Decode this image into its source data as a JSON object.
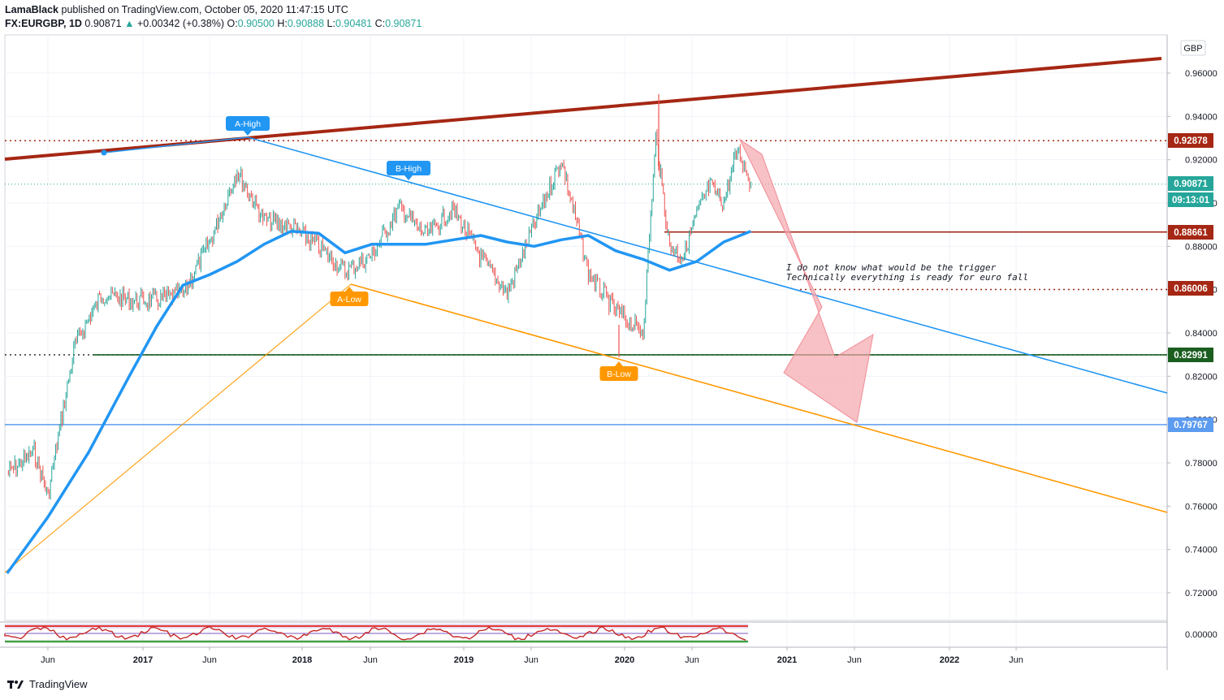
{
  "header": {
    "author": "LamaBlack",
    "published_text": "published on TradingView.com, October 05, 2020 11:47:15 UTC",
    "symbol": "FX:EURGBP, 1D",
    "last": "0.90871",
    "change": "+0.00342 (+0.38%)",
    "open_label": "O:",
    "open": "0.90500",
    "high_label": "H:",
    "high": "0.90888",
    "low_label": "L:",
    "low": "0.90481",
    "close_label": "C:",
    "close": "0.90871"
  },
  "footer": {
    "brand": "TradingView"
  },
  "colors": {
    "up": "#26a69a",
    "down": "#ef5350",
    "ma": "#2196f3",
    "trend_red": "#a52714",
    "blue_line": "#2196f3",
    "orange": "#ff9800",
    "green_line": "#1b5e20",
    "arrow_fill": "#f4a7ad"
  },
  "chart_data": {
    "type": "line",
    "title": "",
    "currency": "GBP",
    "ylim": [
      0.706,
      0.978
    ],
    "y_ticks": [
      "0.96000",
      "0.94000",
      "0.92000",
      "0.90000",
      "0.88000",
      "0.86000",
      "0.84000",
      "0.82000",
      "0.80000",
      "0.78000",
      "0.76000",
      "0.74000",
      "0.72000"
    ],
    "x_ticks": [
      "Jun",
      "2017",
      "Jun",
      "2018",
      "Jun",
      "2019",
      "Jun",
      "2020",
      "Jun",
      "2021",
      "Jun",
      "2022",
      "Jun"
    ],
    "price_labels": [
      {
        "text": "0.92878",
        "color": "#a52714"
      },
      {
        "text": "0.90871",
        "color": "#26a69a"
      },
      {
        "text": "09:13:01",
        "color": "#26a69a"
      },
      {
        "text": "0.88661",
        "color": "#a52714"
      },
      {
        "text": "0.86006",
        "color": "#a52714"
      },
      {
        "text": "0.82991",
        "color": "#1b5e20"
      },
      {
        "text": "0.79767",
        "color": "#5b9bf0"
      }
    ],
    "series": [
      {
        "name": "",
        "kind": "price",
        "x": [
          "2016-03",
          "2016-05",
          "2016-06",
          "2016-08",
          "2016-10",
          "2016-12",
          "2017-02",
          "2017-04",
          "2017-06",
          "2017-08",
          "2017-10",
          "2017-12",
          "2018-02",
          "2018-04",
          "2018-06",
          "2018-08",
          "2018-10",
          "2018-12",
          "2019-02",
          "2019-04",
          "2019-06",
          "2019-08",
          "2019-10",
          "2019-12",
          "2020-02",
          "2020-03",
          "2020-04",
          "2020-05",
          "2020-06",
          "2020-07",
          "2020-08",
          "2020-09",
          "2020-10"
        ],
        "values": [
          0.775,
          0.785,
          0.765,
          0.835,
          0.858,
          0.855,
          0.855,
          0.858,
          0.882,
          0.915,
          0.892,
          0.889,
          0.88,
          0.868,
          0.876,
          0.898,
          0.885,
          0.897,
          0.875,
          0.858,
          0.89,
          0.92,
          0.868,
          0.85,
          0.84,
          0.93,
          0.88,
          0.875,
          0.895,
          0.908,
          0.9,
          0.925,
          0.909
        ]
      },
      {
        "name": "",
        "kind": "ma",
        "x": [
          "2016-03",
          "2016-06",
          "2016-09",
          "2016-12",
          "2017-02",
          "2017-04",
          "2017-06",
          "2017-08",
          "2017-10",
          "2017-12",
          "2018-02",
          "2018-04",
          "2018-06",
          "2018-08",
          "2018-10",
          "2018-12",
          "2019-02",
          "2019-04",
          "2019-06",
          "2019-08",
          "2019-10",
          "2019-12",
          "2020-02",
          "2020-04",
          "2020-06",
          "2020-08",
          "2020-10"
        ],
        "values": [
          0.729,
          0.755,
          0.785,
          0.82,
          0.843,
          0.862,
          0.867,
          0.873,
          0.881,
          0.887,
          0.886,
          0.877,
          0.881,
          0.881,
          0.881,
          0.883,
          0.885,
          0.882,
          0.88,
          0.883,
          0.885,
          0.878,
          0.874,
          0.869,
          0.873,
          0.882,
          0.887
        ]
      }
    ],
    "drawings": {
      "labels": [
        "A-High",
        "B-High",
        "A-Low",
        "B-Low"
      ],
      "annotation_line1": "I do not know what would be the trigger",
      "annotation_line2": "Technically everything is ready for euro fall"
    },
    "oscillator": {
      "zero_label": "0.00000"
    }
  }
}
